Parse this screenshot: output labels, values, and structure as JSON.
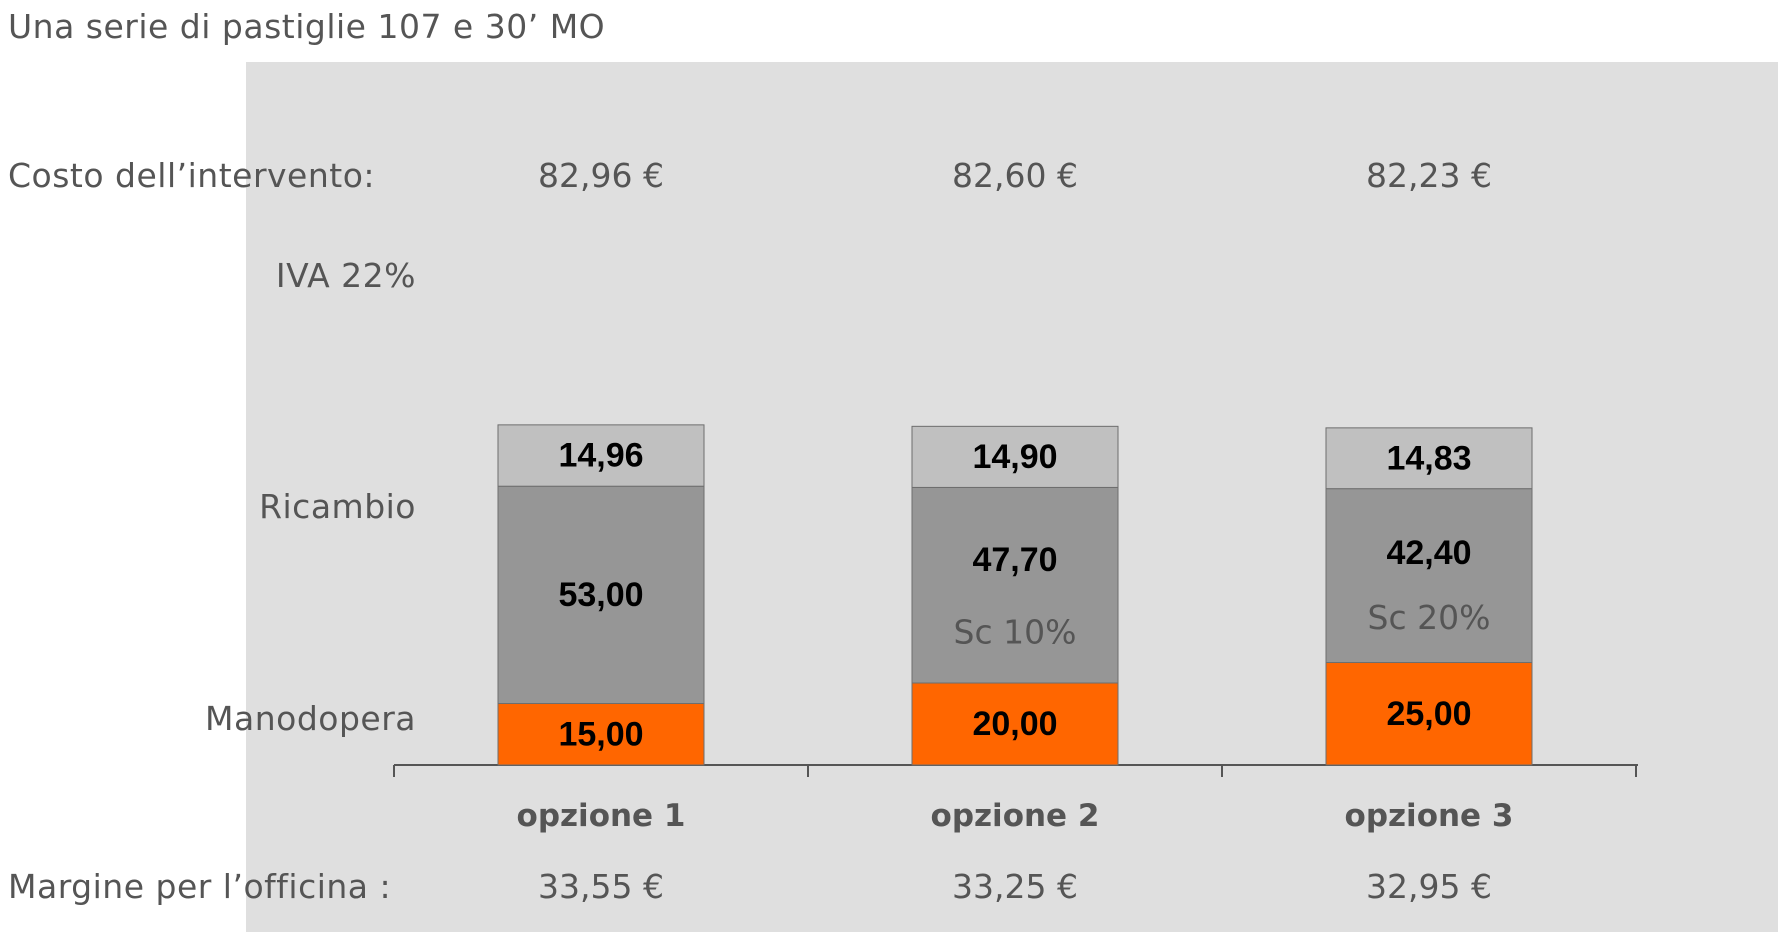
{
  "title": "Una serie di pastiglie 107 e 30’ MO",
  "cost_label": "Costo dell’intervento:",
  "margin_label": "Margine per l’officina :",
  "colors": {
    "iva": "#c0c0c0",
    "ricambio": "#969696",
    "manodopera": "#ff6600",
    "panel": "#dfdfdf",
    "axis": "#555555"
  },
  "chart_data": {
    "type": "bar",
    "stacked": true,
    "categories": [
      "opzione 1",
      "opzione 2",
      "opzione 3"
    ],
    "series": [
      {
        "name": "Manodopera",
        "values": [
          15.0,
          20.0,
          25.0
        ],
        "labels": [
          "15,00",
          "20,00",
          "25,00"
        ]
      },
      {
        "name": "Ricambio",
        "values": [
          53.0,
          47.7,
          42.4
        ],
        "labels": [
          "53,00",
          "47,70",
          "42,40"
        ]
      },
      {
        "name": "IVA 22%",
        "values": [
          14.96,
          14.9,
          14.83
        ],
        "labels": [
          "14,96",
          "14,90",
          "14,83"
        ]
      }
    ],
    "annotations": [
      "",
      "Sc 10%",
      "Sc 20%"
    ],
    "totals": [
      "82,96 €",
      "82,60 €",
      "82,23 €"
    ],
    "margins": [
      "33,55 €",
      "33,25 €",
      "32,95 €"
    ],
    "ylim": [
      0,
      85
    ],
    "grid": false
  }
}
